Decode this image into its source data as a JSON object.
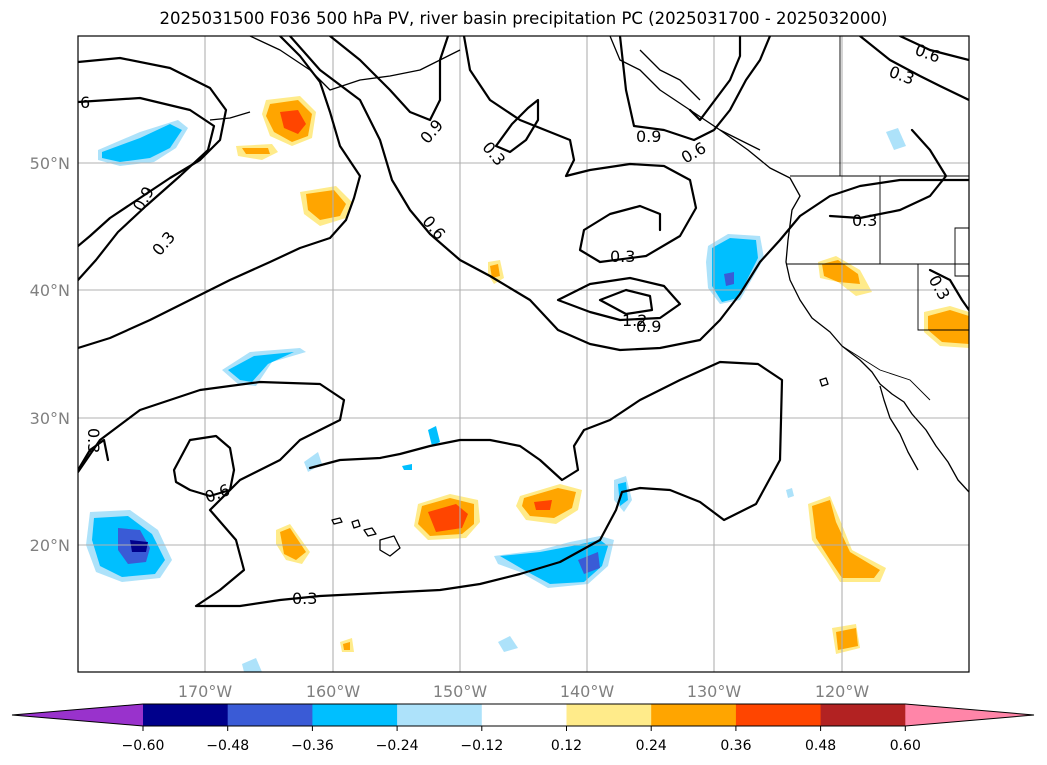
{
  "title": "2025031500 F036 500 hPa PV, river basin precipitation PC (2025031700 - 2025032000)",
  "map": {
    "lon_labels": [
      "170°W",
      "160°W",
      "150°W",
      "140°W",
      "130°W",
      "120°W"
    ],
    "lat_labels": [
      "50°N",
      "40°N",
      "30°N",
      "20°N"
    ],
    "extent_lon": [
      -180,
      -110
    ],
    "extent_lat": [
      10,
      60
    ],
    "gridlines": true,
    "contour_color": "#000000",
    "contour_labels": [
      "6",
      "0.9",
      "0.3",
      "0.9",
      "0.3",
      "0.6",
      "0.9",
      "0.6",
      "0.6",
      "0.3",
      "0.3",
      "0.3",
      "1.2",
      "0.9",
      "0.3",
      "0.3",
      "0.6",
      "0.3"
    ]
  },
  "colorbar": {
    "ticks": [
      "−0.60",
      "−0.48",
      "−0.36",
      "−0.24",
      "−0.12",
      "0.12",
      "0.24",
      "0.36",
      "0.48",
      "0.60"
    ],
    "colors": [
      "#9932CC",
      "#00008B",
      "#3A5BD6",
      "#00BFFF",
      "#ADE2FA",
      "#FFFFFF",
      "#FFEB8A",
      "#FFA500",
      "#FF4500",
      "#B22222",
      "#FF85A8"
    ]
  }
}
